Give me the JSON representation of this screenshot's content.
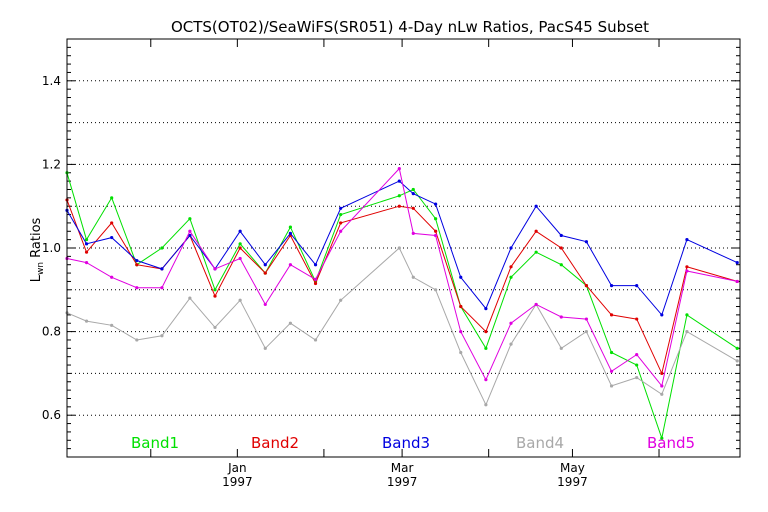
{
  "chart_data": {
    "type": "line",
    "title": "OCTS(OT02)/SeaWiFS(SR051) 4-Day nLw Ratios, PacS45 Subset",
    "ylabel_main": "L",
    "ylabel_sub": "wn",
    "ylabel_rest": " Ratios",
    "ylim": [
      0.5,
      1.5
    ],
    "yticks": [
      "0.6",
      "0.8",
      "1.0",
      "1.2",
      "1.4"
    ],
    "ytick_values": [
      0.6,
      0.8,
      1.0,
      1.2,
      1.4
    ],
    "xlim": [
      "1996-11-01",
      "1997-06-30"
    ],
    "xticks": [
      {
        "label": "Jan",
        "year": "1997",
        "date": "1997-01-01"
      },
      {
        "label": "Mar",
        "year": "1997",
        "date": "1997-03-01"
      },
      {
        "label": "May",
        "year": "1997",
        "date": "1997-05-01"
      }
    ],
    "grid": true,
    "legend_position": "bottom",
    "x": [
      "1996-11-01",
      "1996-11-09",
      "1996-11-21",
      "1996-12-03",
      "1996-12-15",
      "1996-12-27",
      "1997-01-04",
      "1997-01-12",
      "1997-01-20",
      "1997-01-28",
      "1997-02-05",
      "1997-02-13",
      "1997-02-21",
      "1997-03-01",
      "1997-03-07",
      "1997-03-15",
      "1997-03-23",
      "1997-03-31",
      "1997-04-08",
      "1997-04-16",
      "1997-04-24",
      "1997-05-02",
      "1997-05-12",
      "1997-05-20",
      "1997-05-28",
      "1997-06-05",
      "1997-06-13",
      "1997-06-21",
      "1997-06-29"
    ],
    "series": [
      {
        "name": "Band1",
        "color": "#00e000",
        "points": [
          [
            "1996-11-01",
            1.18
          ],
          [
            "1996-11-08",
            1.02
          ],
          [
            "1996-11-17",
            1.12
          ],
          [
            "1996-11-26",
            0.96
          ],
          [
            "1996-12-05",
            1.0
          ],
          [
            "1996-12-15",
            1.07
          ],
          [
            "1996-12-24",
            0.9
          ],
          [
            "1997-01-02",
            1.01
          ],
          [
            "1997-01-11",
            0.94
          ],
          [
            "1997-01-20",
            1.05
          ],
          [
            "1997-01-29",
            0.92
          ],
          [
            "1997-02-07",
            1.08
          ],
          [
            "1997-02-28",
            1.125
          ],
          [
            "1997-03-05",
            1.14
          ],
          [
            "1997-03-13",
            1.07
          ],
          [
            "1997-03-22",
            0.86
          ],
          [
            "1997-03-31",
            0.76
          ],
          [
            "1997-04-09",
            0.93
          ],
          [
            "1997-04-18",
            0.99
          ],
          [
            "1997-04-27",
            0.96
          ],
          [
            "1997-05-06",
            0.91
          ],
          [
            "1997-05-15",
            0.75
          ],
          [
            "1997-05-24",
            0.72
          ],
          [
            "1997-06-02",
            0.545
          ],
          [
            "1997-06-11",
            0.84
          ],
          [
            "1997-06-29",
            0.76
          ]
        ]
      },
      {
        "name": "Band2",
        "color": "#e00000",
        "points": [
          [
            "1996-11-01",
            1.115
          ],
          [
            "1996-11-08",
            0.99
          ],
          [
            "1996-11-17",
            1.06
          ],
          [
            "1996-11-26",
            0.96
          ],
          [
            "1996-12-05",
            0.95
          ],
          [
            "1996-12-15",
            1.03
          ],
          [
            "1996-12-24",
            0.885
          ],
          [
            "1997-01-02",
            1.0
          ],
          [
            "1997-01-11",
            0.94
          ],
          [
            "1997-01-20",
            1.03
          ],
          [
            "1997-01-29",
            0.915
          ],
          [
            "1997-02-07",
            1.06
          ],
          [
            "1997-02-28",
            1.1
          ],
          [
            "1997-03-05",
            1.095
          ],
          [
            "1997-03-13",
            1.04
          ],
          [
            "1997-03-22",
            0.86
          ],
          [
            "1997-03-31",
            0.8
          ],
          [
            "1997-04-09",
            0.955
          ],
          [
            "1997-04-18",
            1.04
          ],
          [
            "1997-04-27",
            1.0
          ],
          [
            "1997-05-06",
            0.91
          ],
          [
            "1997-05-15",
            0.84
          ],
          [
            "1997-05-24",
            0.83
          ],
          [
            "1997-06-02",
            0.7
          ],
          [
            "1997-06-11",
            0.955
          ],
          [
            "1997-06-29",
            0.92
          ]
        ]
      },
      {
        "name": "Band3",
        "color": "#0000e0",
        "points": [
          [
            "1996-11-01",
            1.09
          ],
          [
            "1996-11-08",
            1.01
          ],
          [
            "1996-11-17",
            1.025
          ],
          [
            "1996-11-26",
            0.97
          ],
          [
            "1996-12-05",
            0.95
          ],
          [
            "1996-12-15",
            1.03
          ],
          [
            "1996-12-24",
            0.95
          ],
          [
            "1997-01-02",
            1.04
          ],
          [
            "1997-01-11",
            0.96
          ],
          [
            "1997-01-20",
            1.035
          ],
          [
            "1997-01-29",
            0.96
          ],
          [
            "1997-02-07",
            1.095
          ],
          [
            "1997-02-28",
            1.16
          ],
          [
            "1997-03-05",
            1.13
          ],
          [
            "1997-03-13",
            1.105
          ],
          [
            "1997-03-22",
            0.93
          ],
          [
            "1997-03-31",
            0.855
          ],
          [
            "1997-04-09",
            1.0
          ],
          [
            "1997-04-18",
            1.1
          ],
          [
            "1997-04-27",
            1.03
          ],
          [
            "1997-05-06",
            1.015
          ],
          [
            "1997-05-15",
            0.91
          ],
          [
            "1997-05-24",
            0.91
          ],
          [
            "1997-06-02",
            0.84
          ],
          [
            "1997-06-11",
            1.02
          ],
          [
            "1997-06-29",
            0.965
          ]
        ]
      },
      {
        "name": "Band4",
        "color": "#a8a8a8",
        "points": [
          [
            "1996-11-01",
            0.845
          ],
          [
            "1996-11-08",
            0.825
          ],
          [
            "1996-11-17",
            0.815
          ],
          [
            "1996-11-26",
            0.78
          ],
          [
            "1996-12-05",
            0.79
          ],
          [
            "1996-12-15",
            0.88
          ],
          [
            "1996-12-24",
            0.81
          ],
          [
            "1997-01-02",
            0.875
          ],
          [
            "1997-01-11",
            0.76
          ],
          [
            "1997-01-20",
            0.82
          ],
          [
            "1997-01-29",
            0.78
          ],
          [
            "1997-02-07",
            0.875
          ],
          [
            "1997-02-28",
            1.0
          ],
          [
            "1997-03-05",
            0.93
          ],
          [
            "1997-03-13",
            0.9
          ],
          [
            "1997-03-22",
            0.75
          ],
          [
            "1997-03-31",
            0.625
          ],
          [
            "1997-04-09",
            0.77
          ],
          [
            "1997-04-18",
            0.865
          ],
          [
            "1997-04-27",
            0.76
          ],
          [
            "1997-05-06",
            0.8
          ],
          [
            "1997-05-15",
            0.67
          ],
          [
            "1997-05-24",
            0.69
          ],
          [
            "1997-06-02",
            0.65
          ],
          [
            "1997-06-11",
            0.8
          ],
          [
            "1997-06-29",
            0.73
          ]
        ]
      },
      {
        "name": "Band5",
        "color": "#e000e0",
        "points": [
          [
            "1996-11-01",
            0.975
          ],
          [
            "1996-11-08",
            0.965
          ],
          [
            "1996-11-17",
            0.93
          ],
          [
            "1996-11-26",
            0.905
          ],
          [
            "1996-12-05",
            0.905
          ],
          [
            "1996-12-15",
            1.04
          ],
          [
            "1996-12-24",
            0.95
          ],
          [
            "1997-01-02",
            0.975
          ],
          [
            "1997-01-11",
            0.865
          ],
          [
            "1997-01-20",
            0.96
          ],
          [
            "1997-01-29",
            0.925
          ],
          [
            "1997-02-07",
            1.04
          ],
          [
            "1997-02-28",
            1.19
          ],
          [
            "1997-03-05",
            1.035
          ],
          [
            "1997-03-13",
            1.03
          ],
          [
            "1997-03-22",
            0.8
          ],
          [
            "1997-03-31",
            0.685
          ],
          [
            "1997-04-09",
            0.82
          ],
          [
            "1997-04-18",
            0.865
          ],
          [
            "1997-04-27",
            0.835
          ],
          [
            "1997-05-06",
            0.83
          ],
          [
            "1997-05-15",
            0.705
          ],
          [
            "1997-05-24",
            0.745
          ],
          [
            "1997-06-02",
            0.67
          ],
          [
            "1997-06-11",
            0.945
          ],
          [
            "1997-06-29",
            0.92
          ]
        ]
      }
    ]
  }
}
